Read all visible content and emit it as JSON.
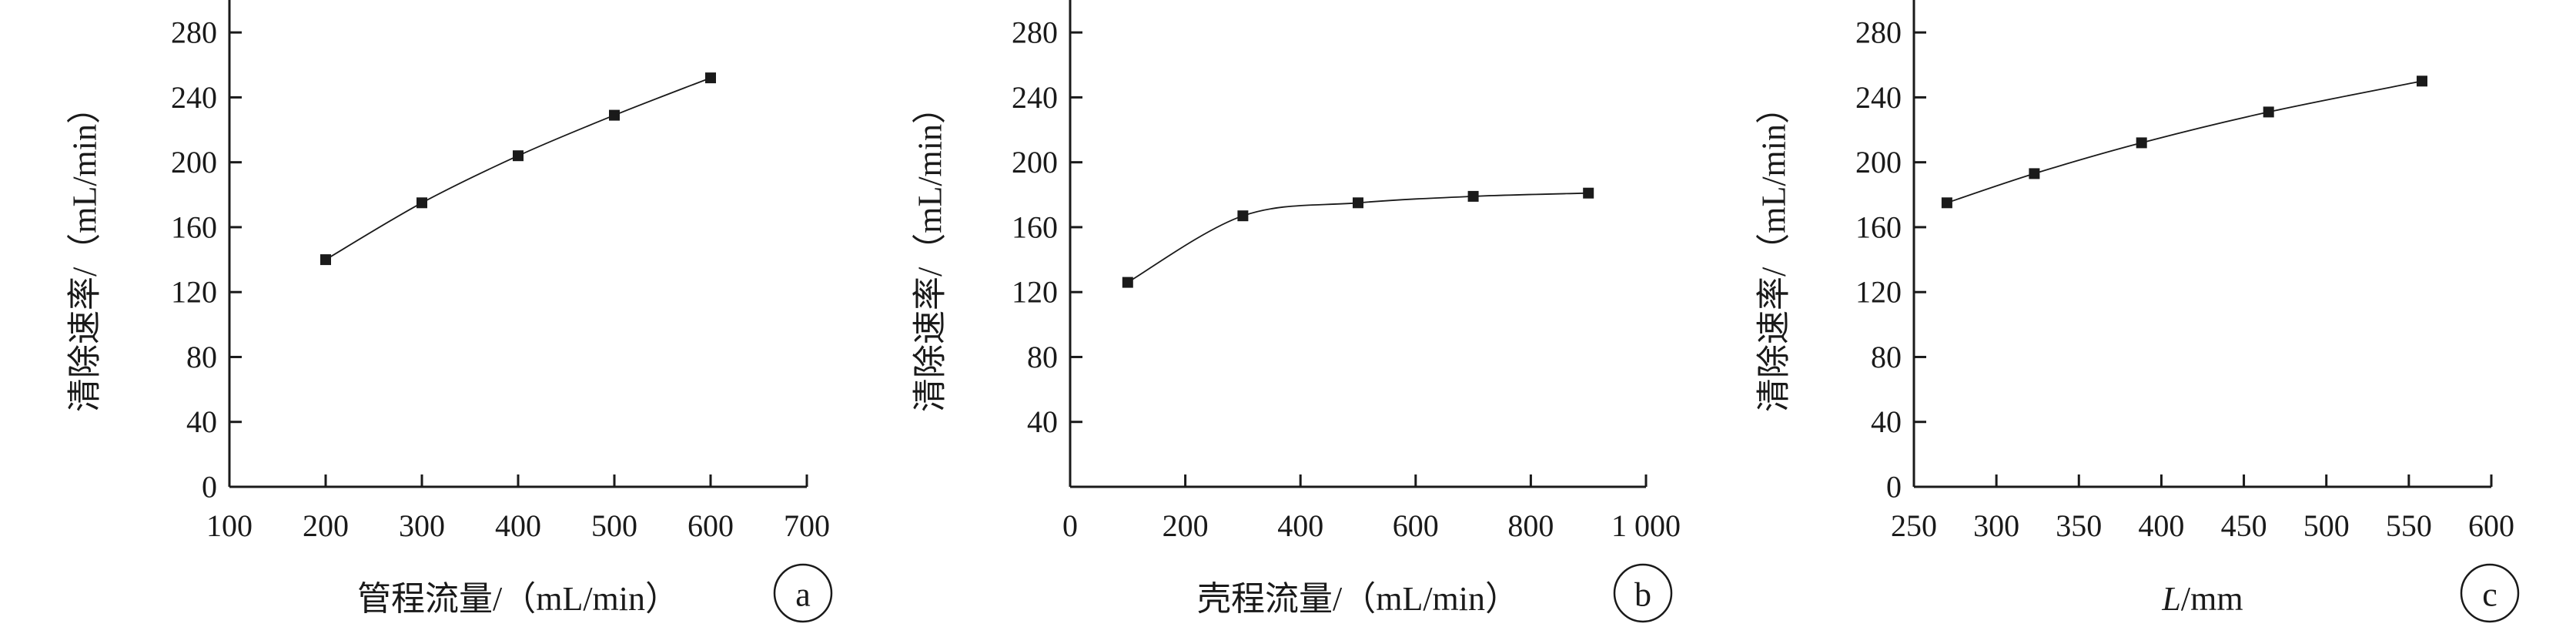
{
  "chart_data": [
    {
      "type": "line",
      "panel_label": "a",
      "xlabel": "管程流量/（mL/min）",
      "ylabel": "清除速率/（mL/min）",
      "xlim": [
        100,
        700
      ],
      "ylim": [
        0,
        300
      ],
      "xticks": [
        100,
        200,
        300,
        400,
        500,
        600,
        700
      ],
      "xtick_labels": [
        "100",
        "200",
        "300",
        "400",
        "500",
        "600",
        "700"
      ],
      "yticks": [
        0,
        40,
        80,
        120,
        160,
        200,
        240,
        280
      ],
      "ytick_labels": [
        "0",
        "40",
        "80",
        "120",
        "160",
        "200",
        "240",
        "280"
      ],
      "series": [
        {
          "x": [
            200,
            300,
            400,
            500,
            600
          ],
          "y": [
            140,
            175,
            204,
            229,
            252
          ]
        }
      ]
    },
    {
      "type": "line",
      "panel_label": "b",
      "xlabel": "壳程流量/（mL/min）",
      "ylabel": "清除速率/（mL/min）",
      "xlim": [
        0,
        1000
      ],
      "ylim": [
        0,
        300
      ],
      "xticks": [
        0,
        200,
        400,
        600,
        800,
        1000
      ],
      "xtick_labels": [
        "0",
        "200",
        "400",
        "600",
        "800",
        "1 000"
      ],
      "yticks": [
        40,
        80,
        120,
        160,
        200,
        240,
        280
      ],
      "ytick_labels": [
        "40",
        "80",
        "120",
        "160",
        "200",
        "240",
        "280"
      ],
      "series": [
        {
          "x": [
            100,
            300,
            500,
            700,
            900
          ],
          "y": [
            126,
            167,
            175,
            179,
            181
          ]
        }
      ]
    },
    {
      "type": "line",
      "panel_label": "c",
      "xlabel": "L/mm",
      "xlabel_italic_part": "L",
      "xlabel_rest": "/mm",
      "ylabel": "清除速率/（mL/min）",
      "xlim": [
        250,
        600
      ],
      "ylim": [
        0,
        300
      ],
      "xticks": [
        250,
        300,
        350,
        400,
        450,
        500,
        550,
        600
      ],
      "xtick_labels": [
        "250",
        "300",
        "350",
        "400",
        "450",
        "500",
        "550",
        "600"
      ],
      "yticks": [
        0,
        40,
        80,
        120,
        160,
        200,
        240,
        280
      ],
      "ytick_labels": [
        "0",
        "40",
        "80",
        "120",
        "160",
        "200",
        "240",
        "280"
      ],
      "series": [
        {
          "x": [
            270,
            323,
            388,
            465,
            558
          ],
          "y": [
            175,
            193,
            212,
            231,
            250
          ]
        }
      ]
    }
  ]
}
